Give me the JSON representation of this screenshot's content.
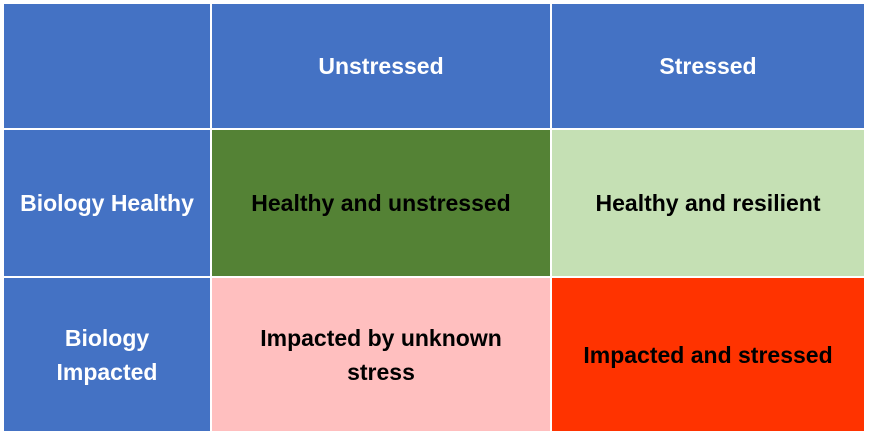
{
  "matrix": {
    "corner": "",
    "columns": [
      "Unstressed",
      "Stressed"
    ],
    "rows": [
      {
        "label": "Biology Healthy",
        "cells": [
          "Healthy and unstressed",
          "Healthy and resilient"
        ]
      },
      {
        "label": "Biology Impacted",
        "cells": [
          "Impacted by unknown stress",
          "Impacted and stressed"
        ]
      }
    ]
  },
  "colors": {
    "header": "#4472c4",
    "healthy_unstressed": "#548235",
    "healthy_resilient": "#c5e0b4",
    "impacted_unknown": "#ffbfbf",
    "impacted_stressed": "#ff3300"
  }
}
